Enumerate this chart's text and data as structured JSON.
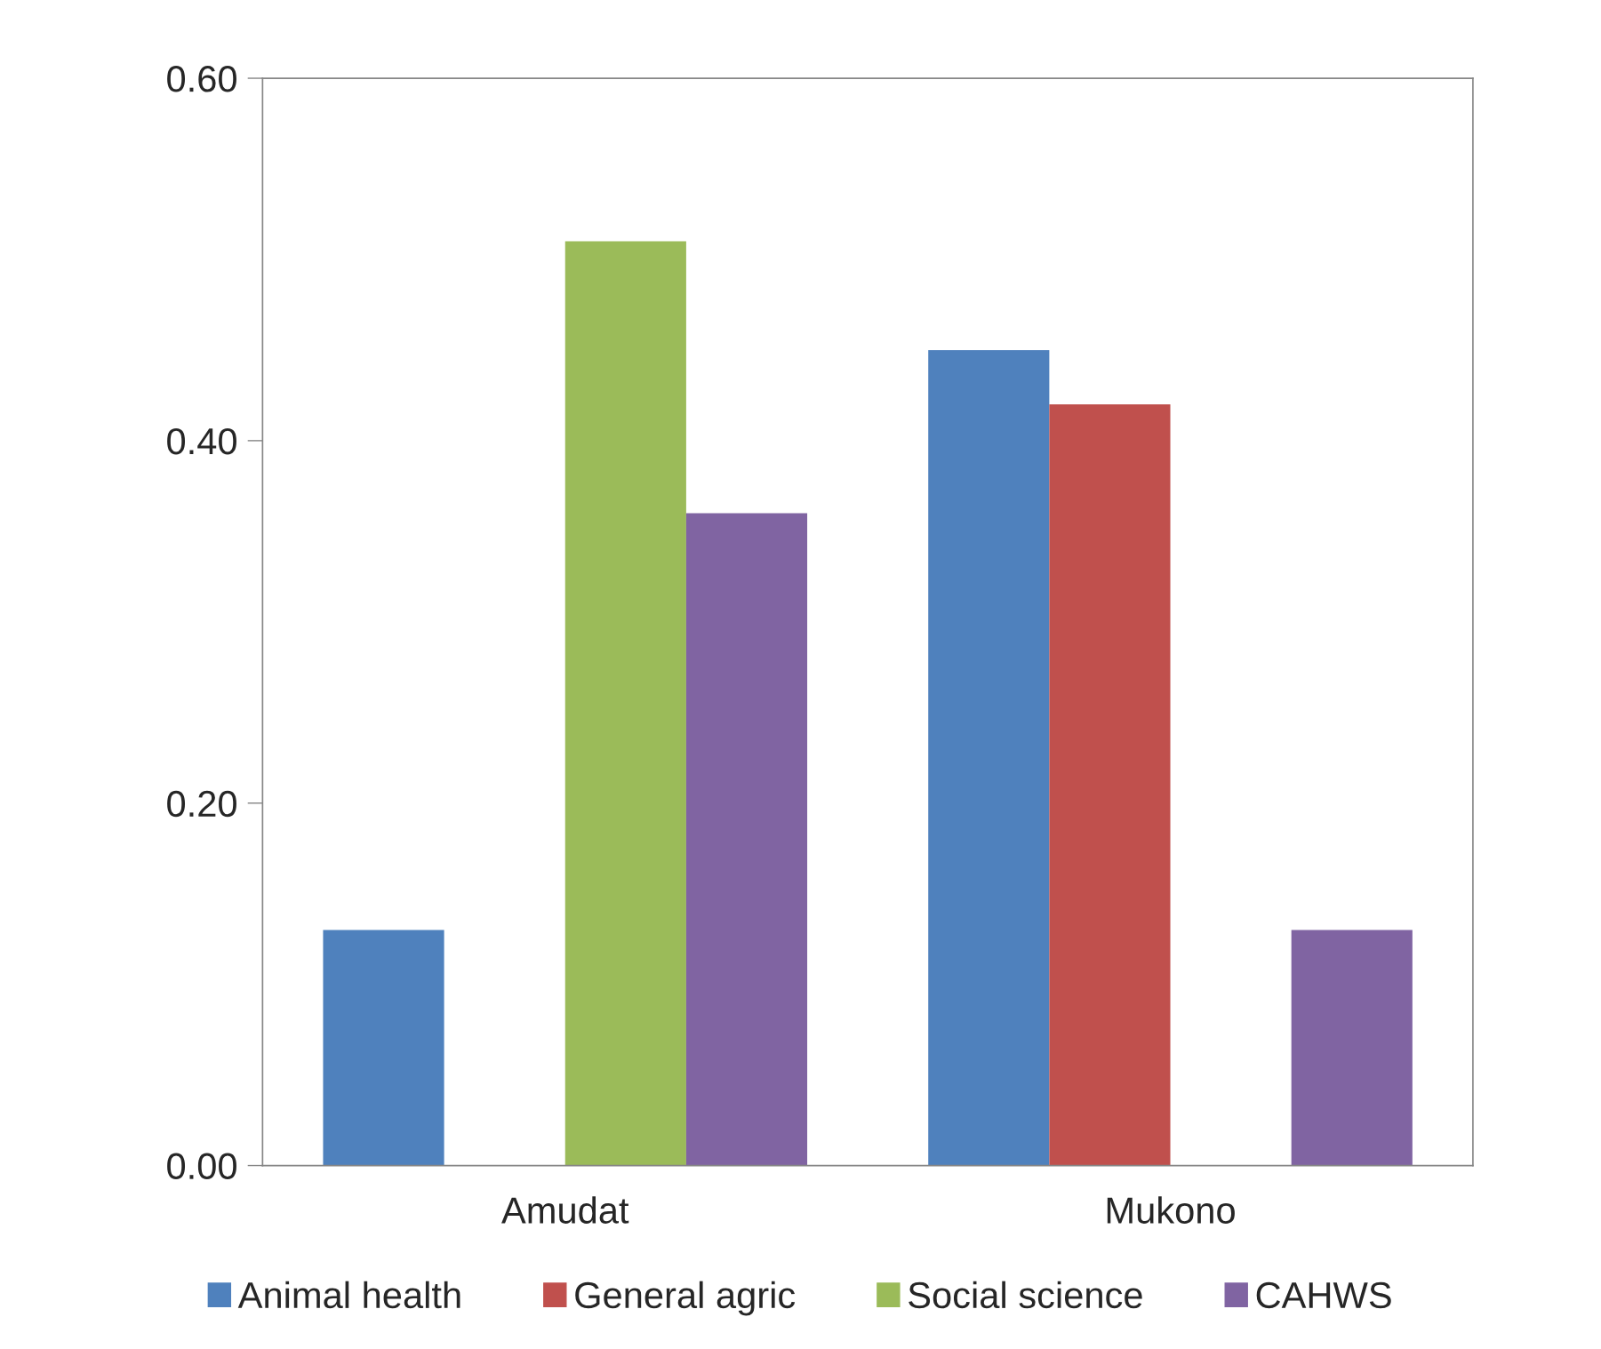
{
  "chart_data": {
    "type": "bar",
    "categories": [
      "Amudat",
      "Mukono"
    ],
    "series": [
      {
        "name": "Animal health",
        "color": "#4f81bd",
        "values": [
          0.13,
          0.45
        ]
      },
      {
        "name": "General agric",
        "color": "#c0504d",
        "values": [
          null,
          0.42
        ]
      },
      {
        "name": "Social science",
        "color": "#9bbb59",
        "values": [
          0.51,
          null
        ]
      },
      {
        "name": "CAHWS",
        "color": "#8064a2",
        "values": [
          0.36,
          0.13
        ]
      }
    ],
    "ylim": [
      0,
      0.6
    ],
    "yticks": [
      {
        "value": 0,
        "label": "0.00"
      },
      {
        "value": 0.2,
        "label": "0.20"
      },
      {
        "value": 0.4,
        "label": "0.40"
      },
      {
        "value": 0.6,
        "label": "0.60"
      }
    ],
    "grid": false,
    "legend": "bottom"
  }
}
